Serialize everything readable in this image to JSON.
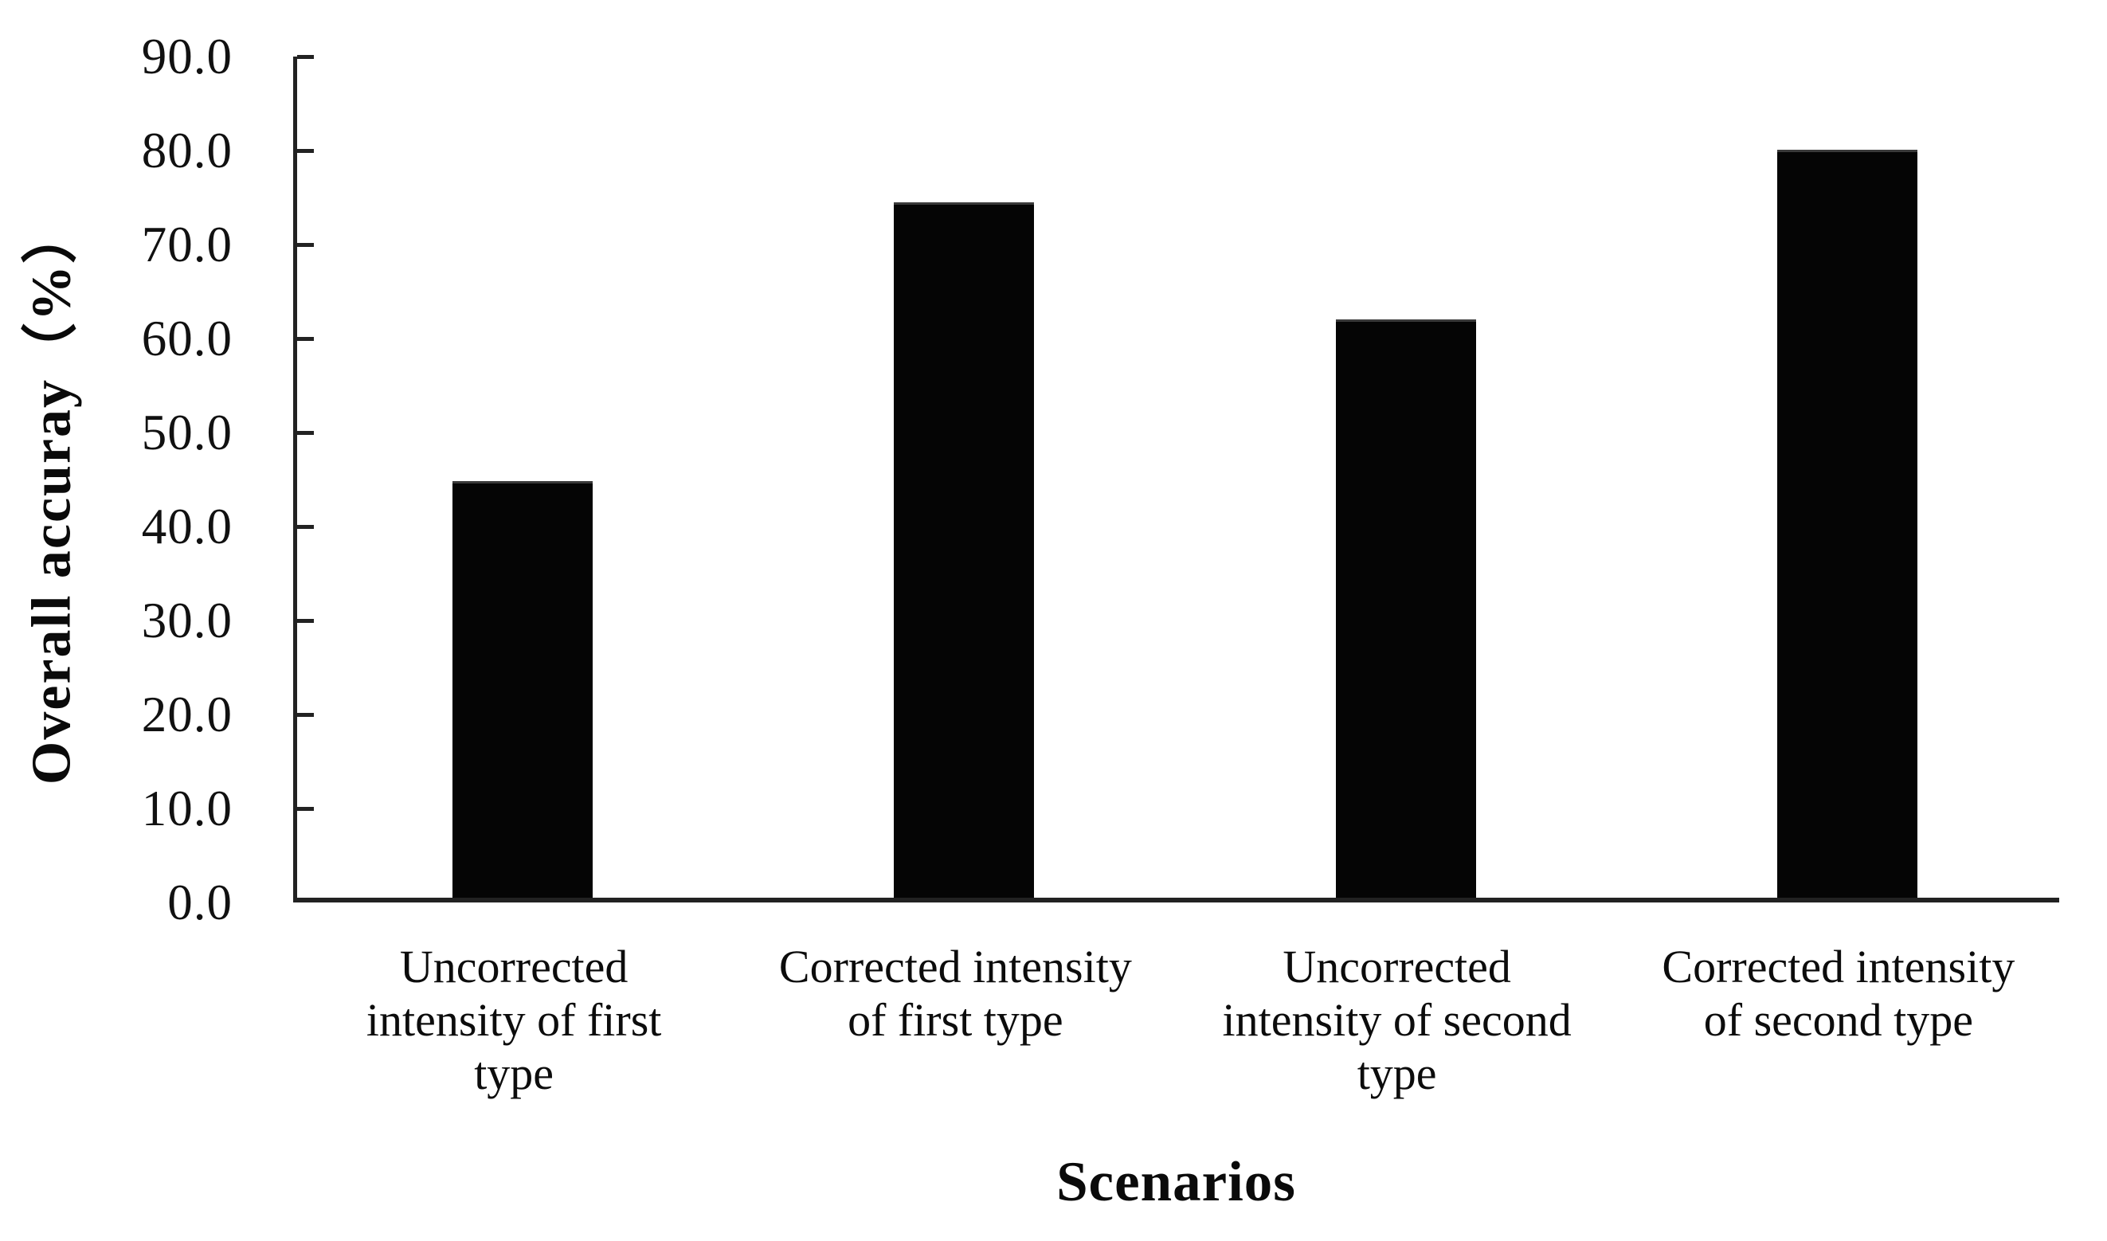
{
  "chart_data": {
    "type": "bar",
    "title": "",
    "xlabel": "Scenarios",
    "ylabel": "Overall accuray（%）",
    "categories": [
      "Uncorrected\nintensity of first\ntype",
      "Corrected intensity\nof first type",
      "Uncorrected\nintensity of second\ntype",
      "Corrected intensity\nof second type"
    ],
    "values": [
      44.3,
      74.0,
      61.5,
      79.6
    ],
    "ylim": [
      0,
      90
    ],
    "ytick_step": 10,
    "ytick_labels": [
      "0.0",
      "10.0",
      "20.0",
      "30.0",
      "40.0",
      "50.0",
      "60.0",
      "70.0",
      "80.0",
      "90.0"
    ],
    "bar_color": "#050505",
    "axis_color": "#222222",
    "grid": "off",
    "legend": "none",
    "background": "#ffffff"
  }
}
